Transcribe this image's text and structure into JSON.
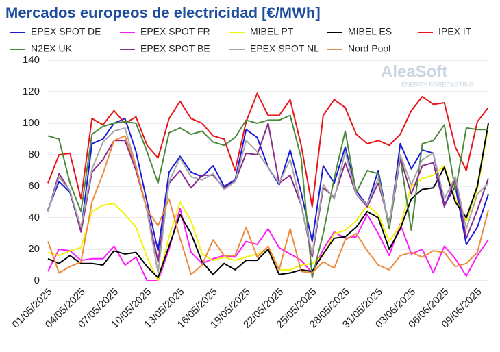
{
  "chart_data": {
    "type": "line",
    "title": "Mercados europeos de electricidad [€/MWh]",
    "annotations": [
      "AleaSoft",
      "ENERGY FORECASTING"
    ],
    "categories": [
      "01/05/2025",
      null,
      null,
      "04/05/2025",
      null,
      null,
      "07/05/2025",
      null,
      null,
      "10/05/2025",
      null,
      null,
      "13/05/2025",
      null,
      null,
      "16/05/2025",
      null,
      null,
      "19/05/2025",
      null,
      null,
      "22/05/2025",
      null,
      null,
      "25/05/2025",
      null,
      null,
      "28/05/2025",
      null,
      null,
      "31/05/2025",
      null,
      null,
      "03/06/2025",
      null,
      null,
      "06/06/2025",
      null,
      null,
      "09/06/2025",
      null
    ],
    "ylim": [
      0,
      140
    ],
    "yticks": [
      0,
      20,
      40,
      60,
      80,
      100,
      120,
      140
    ],
    "grid": true,
    "series": [
      {
        "name": "EPEX SPOT DE",
        "color": "#1a1adb",
        "values": [
          45,
          63,
          56,
          32,
          87,
          90,
          100,
          103,
          82,
          50,
          19,
          69,
          79,
          69,
          66,
          73,
          60,
          64,
          96,
          91,
          72,
          61,
          83,
          56,
          25,
          73,
          62,
          85,
          57,
          48,
          70,
          33,
          87,
          71,
          83,
          81,
          48,
          60,
          23,
          34,
          55
        ]
      },
      {
        "name": "EPEX SPOT FR",
        "color": "#ff19ff",
        "values": [
          6,
          20,
          19,
          13,
          14,
          14,
          22,
          10,
          15,
          0,
          0,
          20,
          46,
          18,
          11,
          14,
          16,
          15,
          25,
          23,
          33,
          21,
          17,
          13,
          5,
          20,
          31,
          27,
          28,
          42,
          30,
          16,
          36,
          17,
          20,
          5,
          22,
          14,
          3,
          16,
          26
        ]
      },
      {
        "name": "MIBEL PT",
        "color": "#f2f20a",
        "values": [
          18,
          16,
          19,
          21,
          44,
          48,
          49,
          42,
          34,
          15,
          0,
          28,
          50,
          38,
          17,
          13,
          15,
          13,
          15,
          17,
          20,
          7,
          7,
          10,
          11,
          16,
          30,
          32,
          38,
          48,
          42,
          25,
          35,
          60,
          65,
          67,
          73,
          52,
          38,
          58,
          98
        ]
      },
      {
        "name": "MIBEL ES",
        "color": "#000000",
        "values": [
          14,
          11,
          16,
          11,
          11,
          10,
          19,
          17,
          18,
          9,
          2,
          22,
          42,
          30,
          12,
          4,
          11,
          7,
          13,
          13,
          20,
          4,
          5,
          7,
          6,
          17,
          27,
          28,
          34,
          44,
          40,
          20,
          33,
          52,
          58,
          59,
          72,
          50,
          40,
          60,
          100
        ]
      },
      {
        "name": "IPEX IT",
        "color": "#e8141a",
        "values": [
          62,
          80,
          81,
          52,
          103,
          99,
          108,
          100,
          104,
          86,
          78,
          103,
          114,
          103,
          100,
          92,
          90,
          70,
          101,
          119,
          105,
          105,
          115,
          86,
          47,
          105,
          115,
          110,
          93,
          87,
          89,
          86,
          93,
          108,
          117,
          112,
          113,
          85,
          70,
          101,
          110
        ]
      },
      {
        "name": "N2EX UK",
        "color": "#4a8a3a",
        "values": [
          92,
          90,
          62,
          44,
          93,
          98,
          100,
          101,
          100,
          82,
          62,
          94,
          97,
          93,
          95,
          88,
          86,
          91,
          102,
          100,
          102,
          102,
          105,
          78,
          2,
          30,
          65,
          95,
          56,
          70,
          68,
          33,
          78,
          32,
          87,
          89,
          99,
          57,
          97,
          96,
          96
        ]
      },
      {
        "name": "EPEX SPOT BE",
        "color": "#8c2a8c",
        "values": [
          44,
          68,
          57,
          31,
          69,
          77,
          89,
          89,
          70,
          45,
          12,
          62,
          70,
          59,
          67,
          67,
          59,
          63,
          81,
          80,
          100,
          62,
          67,
          48,
          15,
          59,
          53,
          75,
          55,
          47,
          62,
          37,
          78,
          55,
          73,
          75,
          47,
          65,
          27,
          45,
          65
        ]
      },
      {
        "name": "EPEX SPOT NL",
        "color": "#a6a6a6",
        "values": [
          44,
          66,
          57,
          34,
          71,
          88,
          95,
          97,
          73,
          44,
          5,
          63,
          78,
          66,
          64,
          68,
          58,
          63,
          89,
          82,
          72,
          62,
          77,
          48,
          17,
          61,
          52,
          82,
          55,
          48,
          65,
          36,
          80,
          61,
          77,
          81,
          52,
          66,
          33,
          55,
          62
        ]
      },
      {
        "name": "Nord Pool",
        "color": "#ed8a3c",
        "values": [
          25,
          5,
          9,
          12,
          50,
          68,
          89,
          92,
          72,
          45,
          35,
          52,
          27,
          4,
          10,
          26,
          16,
          16,
          34,
          15,
          22,
          7,
          33,
          6,
          5,
          12,
          8,
          26,
          30,
          19,
          10,
          7,
          16,
          18,
          15,
          19,
          18,
          9,
          11,
          18,
          45
        ]
      }
    ]
  }
}
